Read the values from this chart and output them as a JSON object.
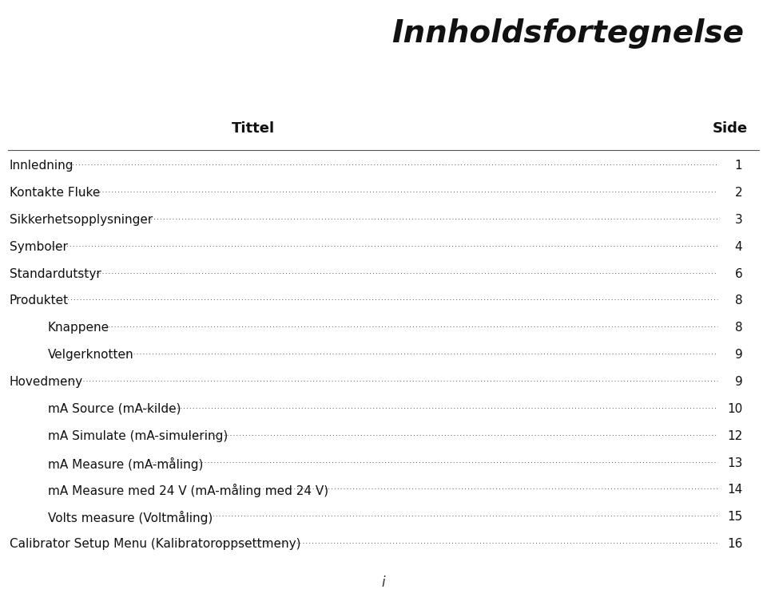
{
  "title": "Innholdsfortegnelse",
  "col_header_left": "Tittel",
  "col_header_right": "Side",
  "background_color": "#ffffff",
  "text_color": "#111111",
  "footer_text": "i",
  "entries": [
    {
      "label": "Innledning",
      "indent": 0,
      "page": "1"
    },
    {
      "label": "Kontakte Fluke",
      "indent": 0,
      "page": "2"
    },
    {
      "label": "Sikkerhetsopplysninger",
      "indent": 0,
      "page": "3"
    },
    {
      "label": "Symboler",
      "indent": 0,
      "page": "4"
    },
    {
      "label": "Standardutstyr",
      "indent": 0,
      "page": "6"
    },
    {
      "label": "Produktet",
      "indent": 0,
      "page": "8"
    },
    {
      "label": "Knappene",
      "indent": 1,
      "page": "8"
    },
    {
      "label": "Velgerknotten",
      "indent": 1,
      "page": "9"
    },
    {
      "label": "Hovedmeny",
      "indent": 0,
      "page": "9"
    },
    {
      "label": "mA Source (mA-kilde)",
      "indent": 1,
      "page": "10"
    },
    {
      "label": "mA Simulate (mA-simulering)",
      "indent": 1,
      "page": "12"
    },
    {
      "label": "mA Measure (mA-måling)",
      "indent": 1,
      "page": "13"
    },
    {
      "label": "mA Measure med 24 V (mA-måling med 24 V)",
      "indent": 1,
      "page": "14"
    },
    {
      "label": "Volts measure (Voltmåling)",
      "indent": 1,
      "page": "15"
    },
    {
      "label": "Calibrator Setup Menu (Kalibratoroppsettmeny)",
      "indent": 0,
      "page": "16"
    }
  ]
}
